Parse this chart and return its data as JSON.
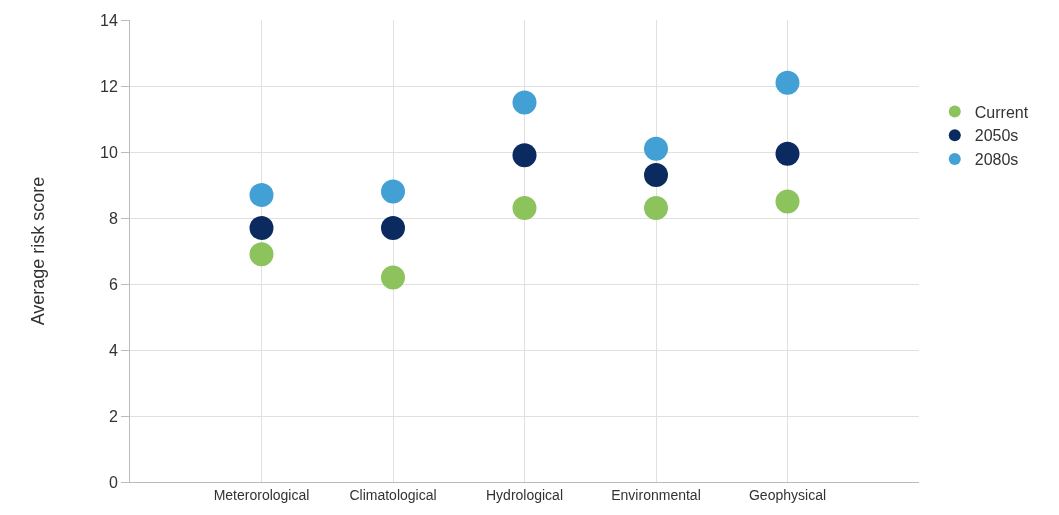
{
  "chart_data": {
    "type": "scatter",
    "ylabel": "Average risk score",
    "categories": [
      "Meterorological",
      "Climatological",
      "Hydrological",
      "Environmental",
      "Geophysical"
    ],
    "series": [
      {
        "name": "Current",
        "color": "#8cc35c",
        "values": [
          6.9,
          6.2,
          8.3,
          8.3,
          8.5
        ]
      },
      {
        "name": "2050s",
        "color": "#0b2a5f",
        "values": [
          7.7,
          7.7,
          9.9,
          9.3,
          9.95
        ]
      },
      {
        "name": "2080s",
        "color": "#43a0d4",
        "values": [
          8.7,
          8.8,
          11.5,
          10.1,
          12.1
        ]
      }
    ],
    "ylim": [
      0,
      14
    ],
    "yticks": [
      0,
      2,
      4,
      6,
      8,
      10,
      12,
      14
    ],
    "grid": true,
    "legend": "right",
    "marker": "circle"
  }
}
